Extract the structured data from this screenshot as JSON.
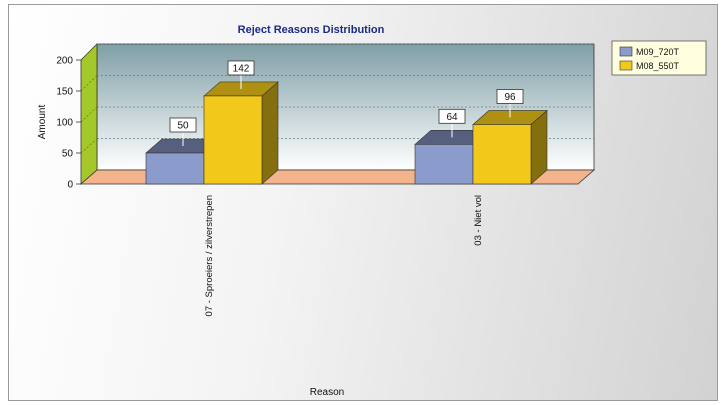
{
  "colors": {
    "series_blue": "#8b9bcc",
    "series_yellow": "#f2c81a",
    "title_blue": "#1c2a88",
    "floor_salmon": "#f3b48c",
    "left_wall_green": "#a4c72a"
  },
  "chart_data": {
    "type": "bar",
    "title": "Reject Reasons Distribution",
    "xlabel": "Reason",
    "ylabel": "Amount",
    "ylim": [
      0,
      200
    ],
    "yticks": [
      "0",
      "50",
      "100",
      "150",
      "200"
    ],
    "categories": [
      "07 - Sproeiers / zilverstrepen",
      "03 - Niet vol"
    ],
    "series": [
      {
        "name": "M09_720T",
        "color": "#8b9bcc",
        "values": [
          50,
          64
        ]
      },
      {
        "name": "M08_550T",
        "color": "#f2c81a",
        "values": [
          142,
          96
        ]
      }
    ],
    "data_labels": [
      [
        "50",
        "142"
      ],
      [
        "64",
        "96"
      ]
    ],
    "legend_position": "top-right",
    "grid": true,
    "style": "3d"
  }
}
